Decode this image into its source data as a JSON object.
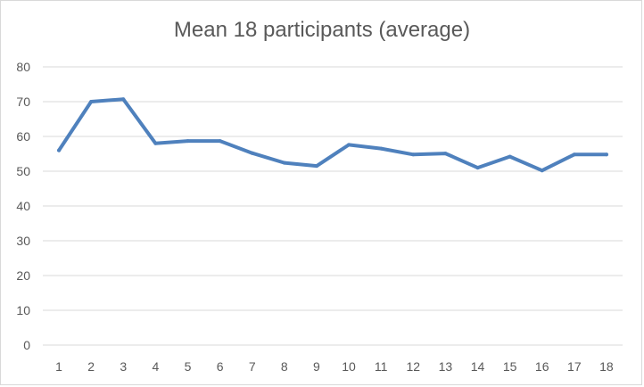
{
  "chart_data": {
    "type": "line",
    "title": "Mean 18 participants (average)",
    "xlabel": "",
    "ylabel": "",
    "x": [
      1,
      2,
      3,
      4,
      5,
      6,
      7,
      8,
      9,
      10,
      11,
      12,
      13,
      14,
      15,
      16,
      17,
      18
    ],
    "series": [
      {
        "values": [
          56,
          70,
          70.7,
          58,
          58.7,
          58.7,
          55.2,
          52.4,
          51.5,
          57.6,
          56.5,
          54.8,
          55.1,
          51,
          54.2,
          50.2,
          54.8,
          54.8
        ],
        "color": "#4f81bd"
      }
    ],
    "ylim": [
      0,
      80
    ],
    "yticks": [
      0,
      10,
      20,
      30,
      40,
      50,
      60,
      70,
      80
    ],
    "grid": "horizontal",
    "legend": "none"
  }
}
